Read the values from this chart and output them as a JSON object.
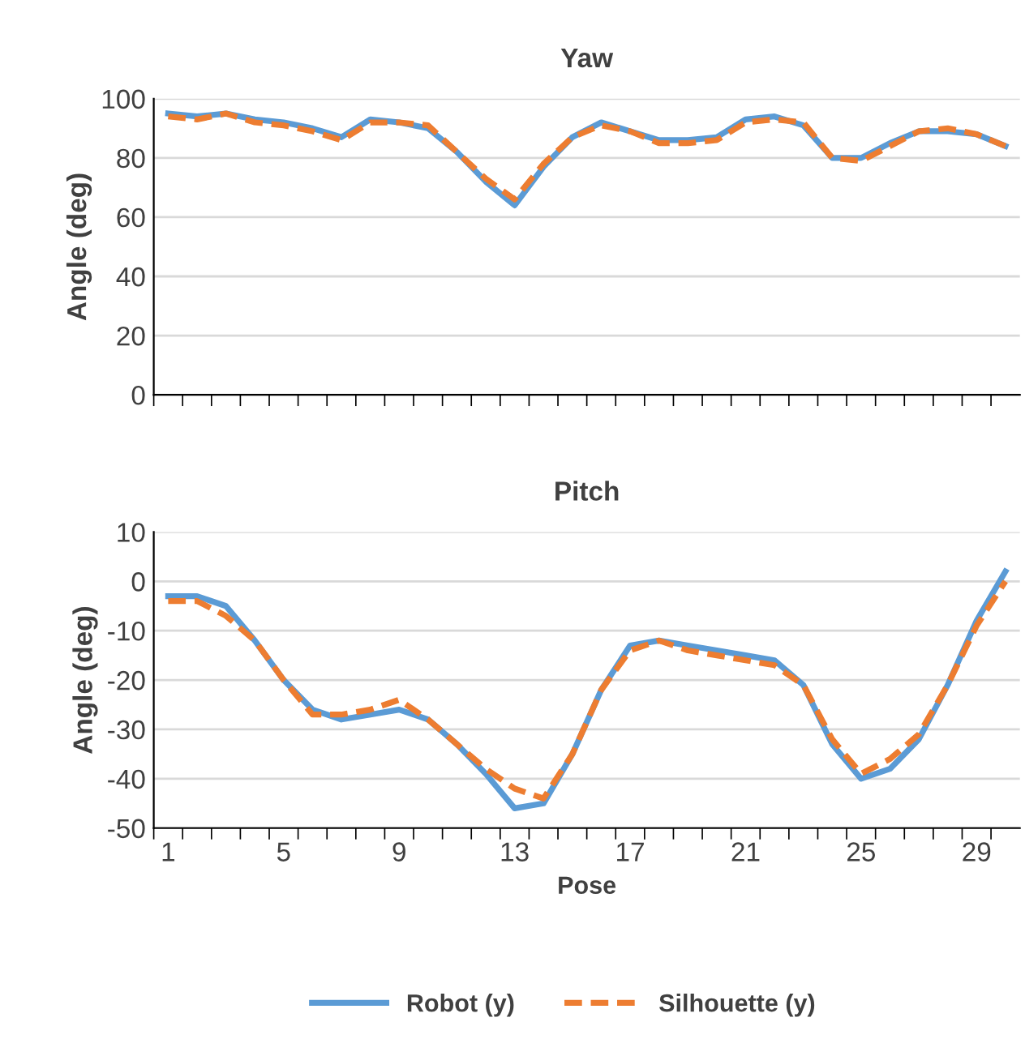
{
  "chart_data": [
    {
      "type": "line",
      "title": "Yaw",
      "ylabel": "Angle (deg)",
      "categories": [
        null,
        null,
        null,
        null,
        null,
        null,
        null,
        null,
        null,
        null,
        null,
        null,
        null,
        null,
        null,
        null,
        null,
        null,
        null,
        null,
        null,
        null,
        null,
        null,
        null,
        null,
        null,
        null,
        null,
        null
      ],
      "ylim": [
        0,
        100
      ],
      "yticks": [
        0,
        20,
        40,
        60,
        80,
        100
      ],
      "grid": "y",
      "tick_labels": "y",
      "series": [
        {
          "color": "#5b9bd5",
          "line_style": "solid",
          "values": [
            95,
            94,
            95,
            93,
            92,
            90,
            87,
            93,
            92,
            90,
            82,
            72,
            64,
            77,
            87,
            92,
            89,
            86,
            86,
            87,
            93,
            94,
            91,
            80,
            80,
            85,
            89,
            89,
            88,
            84
          ]
        },
        {
          "color": "#ed7d31",
          "line_style": "dashed",
          "values": [
            94,
            93,
            95,
            92,
            91,
            89,
            86,
            92,
            92,
            91,
            82,
            73,
            66,
            78,
            87,
            91,
            89,
            85,
            85,
            86,
            92,
            93,
            92,
            80,
            79,
            84,
            89,
            90,
            88,
            84
          ]
        }
      ]
    },
    {
      "type": "line",
      "title": "Pitch",
      "ylabel": "Angle (deg)",
      "xlabel": "Pose",
      "categories": [
        "1",
        null,
        null,
        null,
        "5",
        null,
        null,
        null,
        "9",
        null,
        null,
        null,
        "13",
        null,
        null,
        null,
        "17",
        null,
        null,
        null,
        "21",
        null,
        null,
        null,
        "25",
        null,
        null,
        null,
        "29",
        null
      ],
      "ylim": [
        -50,
        10
      ],
      "yticks": [
        -50,
        -40,
        -30,
        -20,
        -10,
        0,
        10
      ],
      "grid": "y",
      "legend": "bottom",
      "series": [
        {
          "name": "Robot (y)",
          "color": "#5b9bd5",
          "line_style": "solid",
          "values": [
            -3,
            -3,
            -5,
            -12,
            -20,
            -26,
            -28,
            -27,
            -26,
            -28,
            -33,
            -39,
            -46,
            -45,
            -35,
            -22,
            -13,
            -12,
            -13,
            -14,
            -15,
            -16,
            -21,
            -33,
            -40,
            -38,
            -32,
            -21,
            -8,
            2
          ]
        },
        {
          "name": "Silhouette (y)",
          "color": "#ed7d31",
          "line_style": "dashed",
          "values": [
            -4,
            -4,
            -7,
            -12,
            -20,
            -27,
            -27,
            -26,
            -24,
            -28,
            -33,
            -38,
            -42,
            -44,
            -35,
            -22,
            -14,
            -12,
            -14,
            -15,
            -16,
            -17,
            -21,
            -32,
            -39,
            -36,
            -31,
            -21,
            -9,
            0
          ]
        }
      ]
    }
  ]
}
